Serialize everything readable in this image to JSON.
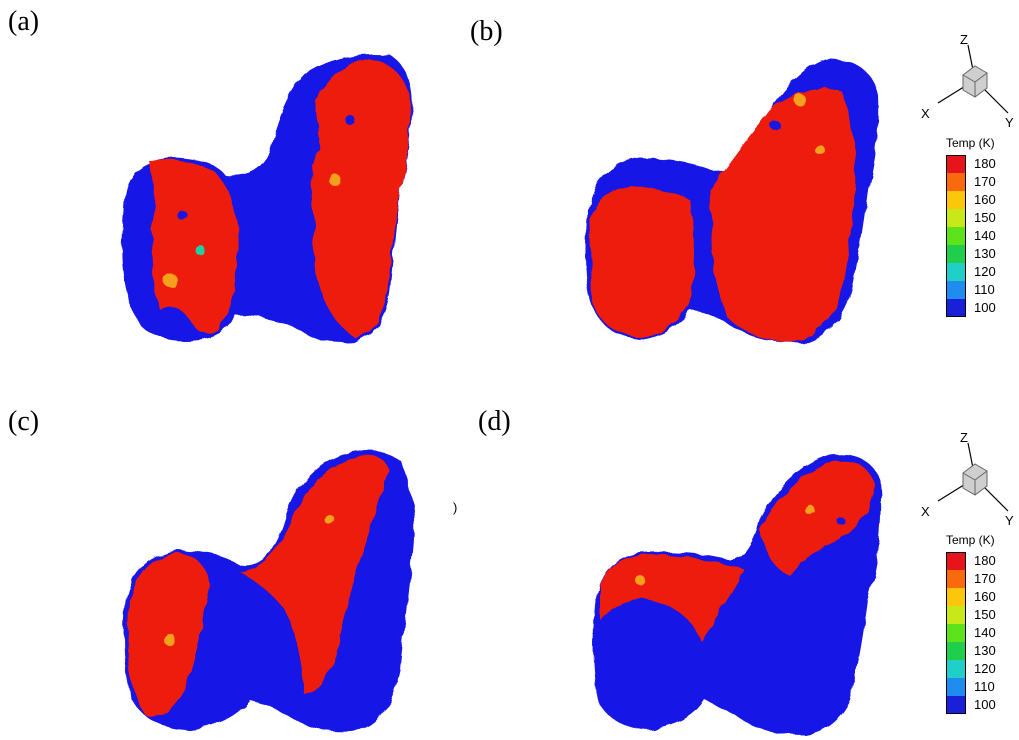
{
  "panels": [
    {
      "label": "(a)"
    },
    {
      "label": "(b)"
    },
    {
      "label": "(c)"
    },
    {
      "label": "(d)"
    }
  ],
  "triad": {
    "x": "X",
    "y": "Y",
    "z": "Z"
  },
  "legend": {
    "title": "Temp (K)",
    "ticks": [
      "180",
      "170",
      "160",
      "150",
      "140",
      "130",
      "120",
      "110",
      "100"
    ],
    "colors": [
      "#e8141b",
      "#f96a0e",
      "#fcc60b",
      "#c8e81a",
      "#5ee21c",
      "#1fce4a",
      "#20d0c8",
      "#1f8cf0",
      "#1a20d8"
    ]
  },
  "colors": {
    "cold": "#1414e6",
    "hot": "#ee1b0f",
    "mid": "#f6a11b",
    "edge": "#22d0a0"
  },
  "stray_mark": ")"
}
